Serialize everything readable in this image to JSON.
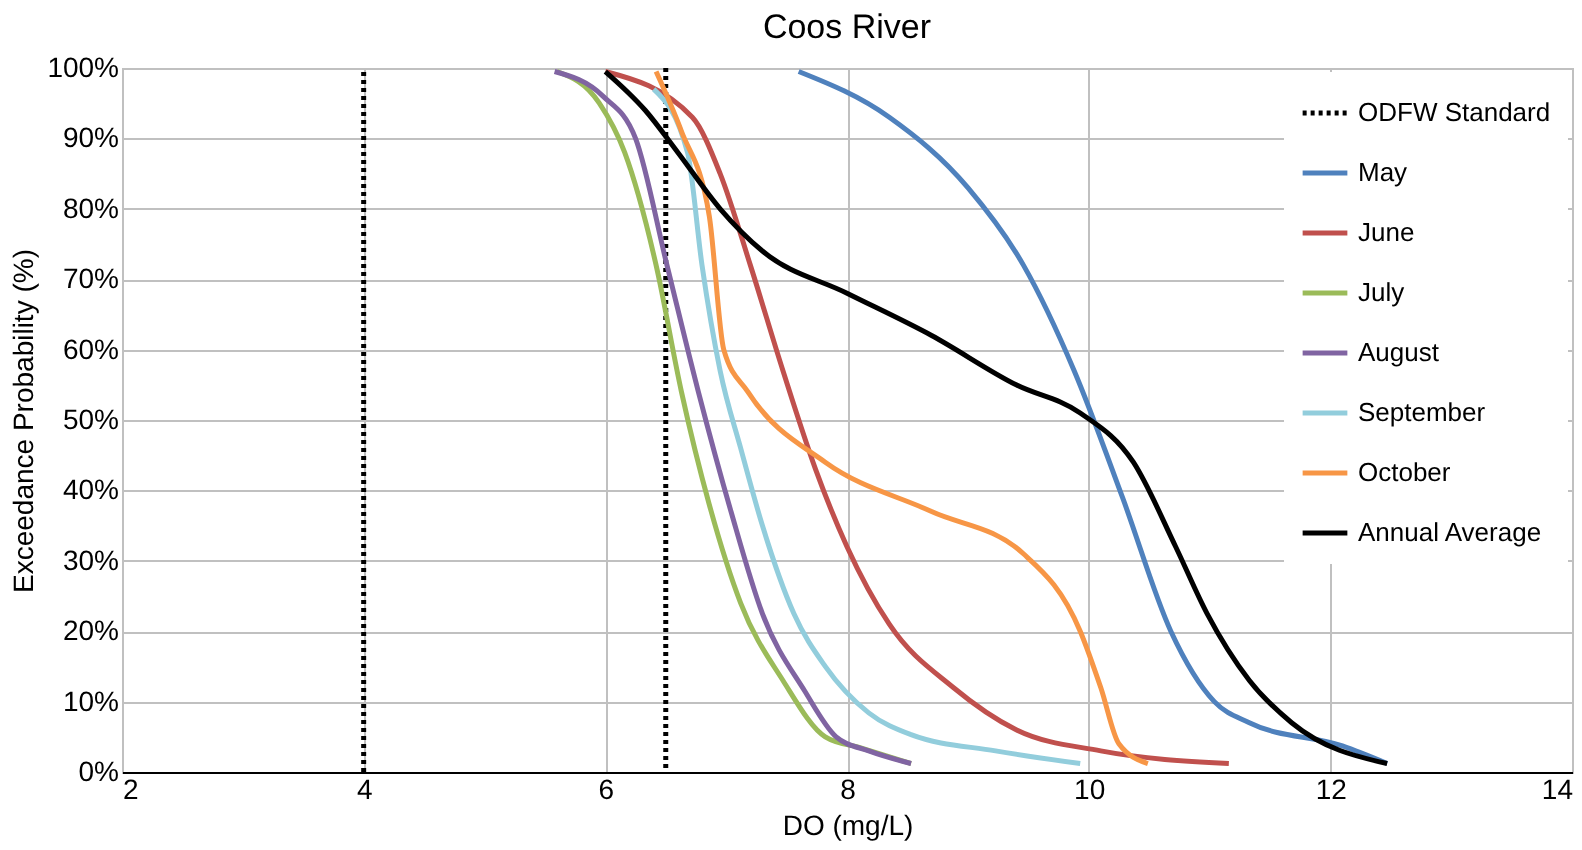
{
  "chart_data": {
    "type": "line",
    "title": "Coos River",
    "xlabel": "DO (mg/L)",
    "ylabel": "Exceedance Probability (%)",
    "xlim": [
      2,
      14
    ],
    "xticks": [
      2,
      4,
      6,
      8,
      10,
      12,
      14
    ],
    "ylim": [
      0,
      100
    ],
    "yticks": [
      {
        "value": 0,
        "label": "0%"
      },
      {
        "value": 10,
        "label": "10%"
      },
      {
        "value": 20,
        "label": "20%"
      },
      {
        "value": 30,
        "label": "30%"
      },
      {
        "value": 40,
        "label": "40%"
      },
      {
        "value": 50,
        "label": "50%"
      },
      {
        "value": 60,
        "label": "60%"
      },
      {
        "value": 70,
        "label": "70%"
      },
      {
        "value": 80,
        "label": "80%"
      },
      {
        "value": 90,
        "label": "90%"
      },
      {
        "value": 100,
        "label": "100%"
      }
    ],
    "grid": true,
    "legend": "top right",
    "marker": "none",
    "series": [
      {
        "name": "ODFW Standard",
        "color": "#000000",
        "line_style": "dotted",
        "x": [
          4,
          4,
          5,
          6.5,
          6.5
        ],
        "values": [
          0,
          100,
          null,
          100,
          0
        ]
      },
      {
        "name": "May",
        "color": "#4f81bd",
        "line_style": "solid",
        "x": [
          7.6,
          8.35,
          9.0,
          9.46,
          9.88,
          10.28,
          10.68,
          11.04,
          11.33,
          12.1,
          12.47
        ],
        "values": [
          99.5,
          93,
          83,
          72,
          57,
          39,
          20,
          10,
          7,
          3.7,
          1.2
        ]
      },
      {
        "name": "June",
        "color": "#c0504d",
        "line_style": "solid",
        "x": [
          6.0,
          6.72,
          6.95,
          7.2,
          7.47,
          7.74,
          8.0,
          8.35,
          8.88,
          9.4,
          10.1,
          11.16
        ],
        "values": [
          99.5,
          93,
          85,
          72,
          57,
          43,
          32,
          21,
          12,
          6,
          3,
          1.2
        ]
      },
      {
        "name": "July",
        "color": "#9bbb59",
        "line_style": "solid",
        "x": [
          5.6,
          5.95,
          6.16,
          6.42,
          6.63,
          6.86,
          7.12,
          7.47,
          7.82,
          8.12,
          8.53
        ],
        "values": [
          99.5,
          95,
          88,
          72,
          54,
          38,
          24,
          13,
          5,
          3.4,
          1.2
        ]
      },
      {
        "name": "August",
        "color": "#8064a2",
        "line_style": "solid",
        "x": [
          5.58,
          5.98,
          6.25,
          6.51,
          6.77,
          7.04,
          7.3,
          7.65,
          7.91,
          8.18,
          8.53
        ],
        "values": [
          99.5,
          96,
          90,
          72,
          54,
          37,
          22.5,
          11.5,
          5,
          3,
          1.2
        ]
      },
      {
        "name": "September",
        "color": "#92cddc",
        "line_style": "solid",
        "x": [
          6.4,
          6.68,
          6.8,
          6.95,
          7.12,
          7.3,
          7.56,
          7.82,
          8.18,
          8.53,
          9.23,
          9.93
        ],
        "values": [
          97,
          88,
          72,
          57,
          46,
          35,
          22.5,
          15,
          8.4,
          5.3,
          3,
          1.2
        ]
      },
      {
        "name": "October",
        "color": "#f79646",
        "line_style": "solid",
        "x": [
          6.42,
          6.63,
          6.86,
          6.98,
          7.18,
          7.82,
          8.7,
          9.46,
          9.93,
          10.1,
          10.25,
          10.49
        ],
        "values": [
          99.5,
          91,
          79,
          60,
          54,
          44,
          37,
          31,
          20,
          12,
          4,
          1.2
        ]
      },
      {
        "name": "Annual Average",
        "color": "#000000",
        "line_style": "solid",
        "x": [
          6.0,
          6.33,
          6.6,
          6.95,
          7.3,
          8.0,
          8.7,
          9.4,
          9.93,
          10.37,
          10.72,
          10.98,
          11.33,
          11.68,
          12.47
        ],
        "values": [
          99.5,
          94,
          88,
          80,
          74,
          68,
          62,
          55,
          51,
          44,
          32,
          22.5,
          13,
          7,
          1.2
        ]
      }
    ]
  }
}
